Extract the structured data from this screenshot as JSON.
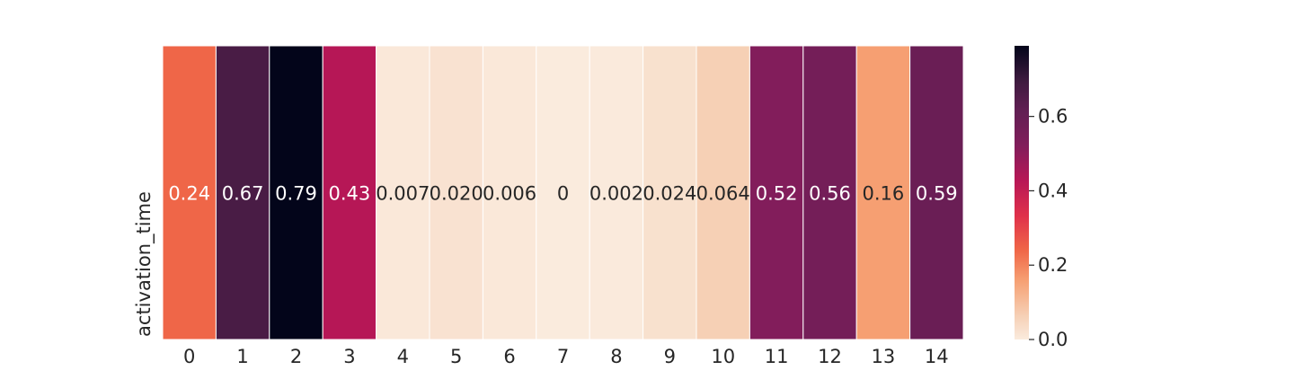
{
  "chart_data": {
    "type": "heatmap",
    "title": "",
    "xlabel": "",
    "ylabel": "activation_time",
    "x_categories": [
      "0",
      "1",
      "2",
      "3",
      "4",
      "5",
      "6",
      "7",
      "8",
      "9",
      "10",
      "11",
      "12",
      "13",
      "14"
    ],
    "values": [
      0.24,
      0.67,
      0.79,
      0.43,
      0.007,
      0.02,
      0.006,
      0,
      0.002,
      0.024,
      0.064,
      0.52,
      0.56,
      0.16,
      0.59
    ],
    "annotations": [
      "0.24",
      "0.67",
      "0.79",
      "0.43",
      "0.007",
      "0.020",
      "0.006",
      "0",
      "0.002",
      "0.024",
      "0.064",
      "0.52",
      "0.56",
      "0.16",
      "0.59"
    ],
    "colorbar": {
      "min": 0.0,
      "max": 0.79,
      "ticks": [
        0.0,
        0.2,
        0.4,
        0.6
      ],
      "tick_labels": [
        "0.0",
        "0.2",
        "0.4",
        "0.6"
      ],
      "colormap": "rocket_r"
    },
    "grid": false,
    "cell_separator_color": "#ffffff"
  }
}
